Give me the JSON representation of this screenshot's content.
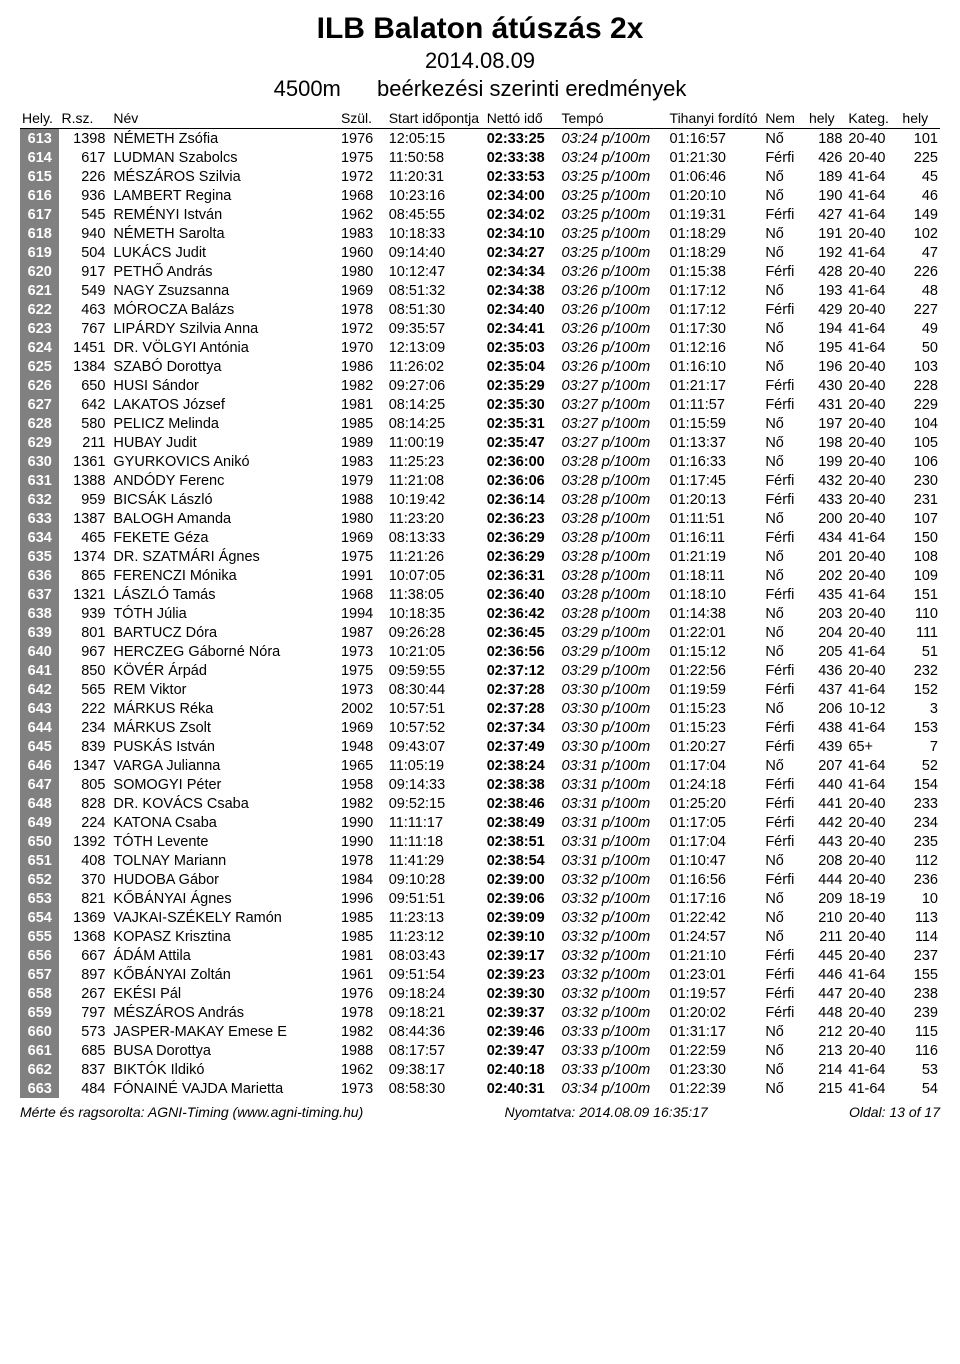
{
  "header": {
    "title": "ILB Balaton átúszás 2x",
    "date": "2014.08.09",
    "distance": "4500m",
    "subtitle": "beérkezési szerinti eredmények"
  },
  "columns": {
    "hely": "Hely.",
    "rsz": "R.sz.",
    "nev": "Név",
    "szul": "Szül.",
    "start": "Start időpontja",
    "netto": "Nettó idő",
    "tempo": "Tempó",
    "tihanyi": "Tihanyi fordító",
    "nem": "Nem",
    "nemhely": "hely",
    "kateg": "Kateg.",
    "kateghely": "hely"
  },
  "footer": {
    "left": "Mérte és ragsorolta: AGNI-Timing  (www.agni-timing.hu)",
    "mid": "Nyomtatva:  2014.08.09 16:35:17",
    "right": "Oldal:   13 of 17"
  },
  "rows": [
    {
      "hely": "613",
      "rsz": "1398",
      "nev": "NÉMETH Zsófia",
      "szul": "1976",
      "start": "12:05:15",
      "netto": "02:33:25",
      "tempo": "03:24 p/100m",
      "tih": "01:16:57",
      "nem": "Nő",
      "nemhely": "188",
      "kateg": "20-40",
      "kateghely": "101"
    },
    {
      "hely": "614",
      "rsz": "617",
      "nev": "LUDMAN Szabolcs",
      "szul": "1975",
      "start": "11:50:58",
      "netto": "02:33:38",
      "tempo": "03:24 p/100m",
      "tih": "01:21:30",
      "nem": "Férfi",
      "nemhely": "426",
      "kateg": "20-40",
      "kateghely": "225"
    },
    {
      "hely": "615",
      "rsz": "226",
      "nev": "MÉSZÁROS Szilvia",
      "szul": "1972",
      "start": "11:20:31",
      "netto": "02:33:53",
      "tempo": "03:25 p/100m",
      "tih": "01:06:46",
      "nem": "Nő",
      "nemhely": "189",
      "kateg": "41-64",
      "kateghely": "45"
    },
    {
      "hely": "616",
      "rsz": "936",
      "nev": "LAMBERT Regina",
      "szul": "1968",
      "start": "10:23:16",
      "netto": "02:34:00",
      "tempo": "03:25 p/100m",
      "tih": "01:20:10",
      "nem": "Nő",
      "nemhely": "190",
      "kateg": "41-64",
      "kateghely": "46"
    },
    {
      "hely": "617",
      "rsz": "545",
      "nev": "REMÉNYI István",
      "szul": "1962",
      "start": "08:45:55",
      "netto": "02:34:02",
      "tempo": "03:25 p/100m",
      "tih": "01:19:31",
      "nem": "Férfi",
      "nemhely": "427",
      "kateg": "41-64",
      "kateghely": "149"
    },
    {
      "hely": "618",
      "rsz": "940",
      "nev": "NÉMETH Sarolta",
      "szul": "1983",
      "start": "10:18:33",
      "netto": "02:34:10",
      "tempo": "03:25 p/100m",
      "tih": "01:18:29",
      "nem": "Nő",
      "nemhely": "191",
      "kateg": "20-40",
      "kateghely": "102"
    },
    {
      "hely": "619",
      "rsz": "504",
      "nev": "LUKÁCS Judit",
      "szul": "1960",
      "start": "09:14:40",
      "netto": "02:34:27",
      "tempo": "03:25 p/100m",
      "tih": "01:18:29",
      "nem": "Nő",
      "nemhely": "192",
      "kateg": "41-64",
      "kateghely": "47"
    },
    {
      "hely": "620",
      "rsz": "917",
      "nev": "PETHŐ András",
      "szul": "1980",
      "start": "10:12:47",
      "netto": "02:34:34",
      "tempo": "03:26 p/100m",
      "tih": "01:15:38",
      "nem": "Férfi",
      "nemhely": "428",
      "kateg": "20-40",
      "kateghely": "226"
    },
    {
      "hely": "621",
      "rsz": "549",
      "nev": "NAGY Zsuzsanna",
      "szul": "1969",
      "start": "08:51:32",
      "netto": "02:34:38",
      "tempo": "03:26 p/100m",
      "tih": "01:17:12",
      "nem": "Nő",
      "nemhely": "193",
      "kateg": "41-64",
      "kateghely": "48"
    },
    {
      "hely": "622",
      "rsz": "463",
      "nev": "MÓROCZA Balázs",
      "szul": "1978",
      "start": "08:51:30",
      "netto": "02:34:40",
      "tempo": "03:26 p/100m",
      "tih": "01:17:12",
      "nem": "Férfi",
      "nemhely": "429",
      "kateg": "20-40",
      "kateghely": "227"
    },
    {
      "hely": "623",
      "rsz": "767",
      "nev": "LIPÁRDY Szilvia Anna",
      "szul": "1972",
      "start": "09:35:57",
      "netto": "02:34:41",
      "tempo": "03:26 p/100m",
      "tih": "01:17:30",
      "nem": "Nő",
      "nemhely": "194",
      "kateg": "41-64",
      "kateghely": "49"
    },
    {
      "hely": "624",
      "rsz": "1451",
      "nev": "DR. VÖLGYI Antónia",
      "szul": "1970",
      "start": "12:13:09",
      "netto": "02:35:03",
      "tempo": "03:26 p/100m",
      "tih": "01:12:16",
      "nem": "Nő",
      "nemhely": "195",
      "kateg": "41-64",
      "kateghely": "50"
    },
    {
      "hely": "625",
      "rsz": "1384",
      "nev": "SZABÓ Dorottya",
      "szul": "1986",
      "start": "11:26:02",
      "netto": "02:35:04",
      "tempo": "03:26 p/100m",
      "tih": "01:16:10",
      "nem": "Nő",
      "nemhely": "196",
      "kateg": "20-40",
      "kateghely": "103"
    },
    {
      "hely": "626",
      "rsz": "650",
      "nev": "HUSI Sándor",
      "szul": "1982",
      "start": "09:27:06",
      "netto": "02:35:29",
      "tempo": "03:27 p/100m",
      "tih": "01:21:17",
      "nem": "Férfi",
      "nemhely": "430",
      "kateg": "20-40",
      "kateghely": "228"
    },
    {
      "hely": "627",
      "rsz": "642",
      "nev": "LAKATOS József",
      "szul": "1981",
      "start": "08:14:25",
      "netto": "02:35:30",
      "tempo": "03:27 p/100m",
      "tih": "01:11:57",
      "nem": "Férfi",
      "nemhely": "431",
      "kateg": "20-40",
      "kateghely": "229"
    },
    {
      "hely": "628",
      "rsz": "580",
      "nev": "PELICZ Melinda",
      "szul": "1985",
      "start": "08:14:25",
      "netto": "02:35:31",
      "tempo": "03:27 p/100m",
      "tih": "01:15:59",
      "nem": "Nő",
      "nemhely": "197",
      "kateg": "20-40",
      "kateghely": "104"
    },
    {
      "hely": "629",
      "rsz": "211",
      "nev": "HUBAY Judit",
      "szul": "1989",
      "start": "11:00:19",
      "netto": "02:35:47",
      "tempo": "03:27 p/100m",
      "tih": "01:13:37",
      "nem": "Nő",
      "nemhely": "198",
      "kateg": "20-40",
      "kateghely": "105"
    },
    {
      "hely": "630",
      "rsz": "1361",
      "nev": "GYURKOVICS Anikó",
      "szul": "1983",
      "start": "11:25:23",
      "netto": "02:36:00",
      "tempo": "03:28 p/100m",
      "tih": "01:16:33",
      "nem": "Nő",
      "nemhely": "199",
      "kateg": "20-40",
      "kateghely": "106"
    },
    {
      "hely": "631",
      "rsz": "1388",
      "nev": "ANDÓDY Ferenc",
      "szul": "1979",
      "start": "11:21:08",
      "netto": "02:36:06",
      "tempo": "03:28 p/100m",
      "tih": "01:17:45",
      "nem": "Férfi",
      "nemhely": "432",
      "kateg": "20-40",
      "kateghely": "230"
    },
    {
      "hely": "632",
      "rsz": "959",
      "nev": "BICSÁK László",
      "szul": "1988",
      "start": "10:19:42",
      "netto": "02:36:14",
      "tempo": "03:28 p/100m",
      "tih": "01:20:13",
      "nem": "Férfi",
      "nemhely": "433",
      "kateg": "20-40",
      "kateghely": "231"
    },
    {
      "hely": "633",
      "rsz": "1387",
      "nev": "BALOGH Amanda",
      "szul": "1980",
      "start": "11:23:20",
      "netto": "02:36:23",
      "tempo": "03:28 p/100m",
      "tih": "01:11:51",
      "nem": "Nő",
      "nemhely": "200",
      "kateg": "20-40",
      "kateghely": "107"
    },
    {
      "hely": "634",
      "rsz": "465",
      "nev": "FEKETE Géza",
      "szul": "1969",
      "start": "08:13:33",
      "netto": "02:36:29",
      "tempo": "03:28 p/100m",
      "tih": "01:16:11",
      "nem": "Férfi",
      "nemhely": "434",
      "kateg": "41-64",
      "kateghely": "150"
    },
    {
      "hely": "635",
      "rsz": "1374",
      "nev": "DR. SZATMÁRI Ágnes",
      "szul": "1975",
      "start": "11:21:26",
      "netto": "02:36:29",
      "tempo": "03:28 p/100m",
      "tih": "01:21:19",
      "nem": "Nő",
      "nemhely": "201",
      "kateg": "20-40",
      "kateghely": "108"
    },
    {
      "hely": "636",
      "rsz": "865",
      "nev": "FERENCZI Mónika",
      "szul": "1991",
      "start": "10:07:05",
      "netto": "02:36:31",
      "tempo": "03:28 p/100m",
      "tih": "01:18:11",
      "nem": "Nő",
      "nemhely": "202",
      "kateg": "20-40",
      "kateghely": "109"
    },
    {
      "hely": "637",
      "rsz": "1321",
      "nev": "LÁSZLÓ Tamás",
      "szul": "1968",
      "start": "11:38:05",
      "netto": "02:36:40",
      "tempo": "03:28 p/100m",
      "tih": "01:18:10",
      "nem": "Férfi",
      "nemhely": "435",
      "kateg": "41-64",
      "kateghely": "151"
    },
    {
      "hely": "638",
      "rsz": "939",
      "nev": "TÓTH Júlia",
      "szul": "1994",
      "start": "10:18:35",
      "netto": "02:36:42",
      "tempo": "03:28 p/100m",
      "tih": "01:14:38",
      "nem": "Nő",
      "nemhely": "203",
      "kateg": "20-40",
      "kateghely": "110"
    },
    {
      "hely": "639",
      "rsz": "801",
      "nev": "BARTUCZ Dóra",
      "szul": "1987",
      "start": "09:26:28",
      "netto": "02:36:45",
      "tempo": "03:29 p/100m",
      "tih": "01:22:01",
      "nem": "Nő",
      "nemhely": "204",
      "kateg": "20-40",
      "kateghely": "111"
    },
    {
      "hely": "640",
      "rsz": "967",
      "nev": "HERCZEG Gáborné Nóra",
      "szul": "1973",
      "start": "10:21:05",
      "netto": "02:36:56",
      "tempo": "03:29 p/100m",
      "tih": "01:15:12",
      "nem": "Nő",
      "nemhely": "205",
      "kateg": "41-64",
      "kateghely": "51"
    },
    {
      "hely": "641",
      "rsz": "850",
      "nev": "KÖVÉR Árpád",
      "szul": "1975",
      "start": "09:59:55",
      "netto": "02:37:12",
      "tempo": "03:29 p/100m",
      "tih": "01:22:56",
      "nem": "Férfi",
      "nemhely": "436",
      "kateg": "20-40",
      "kateghely": "232"
    },
    {
      "hely": "642",
      "rsz": "565",
      "nev": "REM Viktor",
      "szul": "1973",
      "start": "08:30:44",
      "netto": "02:37:28",
      "tempo": "03:30 p/100m",
      "tih": "01:19:59",
      "nem": "Férfi",
      "nemhely": "437",
      "kateg": "41-64",
      "kateghely": "152"
    },
    {
      "hely": "643",
      "rsz": "222",
      "nev": "MÁRKUS Réka",
      "szul": "2002",
      "start": "10:57:51",
      "netto": "02:37:28",
      "tempo": "03:30 p/100m",
      "tih": "01:15:23",
      "nem": "Nő",
      "nemhely": "206",
      "kateg": "10-12",
      "kateghely": "3"
    },
    {
      "hely": "644",
      "rsz": "234",
      "nev": "MÁRKUS Zsolt",
      "szul": "1969",
      "start": "10:57:52",
      "netto": "02:37:34",
      "tempo": "03:30 p/100m",
      "tih": "01:15:23",
      "nem": "Férfi",
      "nemhely": "438",
      "kateg": "41-64",
      "kateghely": "153"
    },
    {
      "hely": "645",
      "rsz": "839",
      "nev": "PUSKÁS István",
      "szul": "1948",
      "start": "09:43:07",
      "netto": "02:37:49",
      "tempo": "03:30 p/100m",
      "tih": "01:20:27",
      "nem": "Férfi",
      "nemhely": "439",
      "kateg": "65+",
      "kateghely": "7"
    },
    {
      "hely": "646",
      "rsz": "1347",
      "nev": "VARGA Julianna",
      "szul": "1965",
      "start": "11:05:19",
      "netto": "02:38:24",
      "tempo": "03:31 p/100m",
      "tih": "01:17:04",
      "nem": "Nő",
      "nemhely": "207",
      "kateg": "41-64",
      "kateghely": "52"
    },
    {
      "hely": "647",
      "rsz": "805",
      "nev": "SOMOGYI Péter",
      "szul": "1958",
      "start": "09:14:33",
      "netto": "02:38:38",
      "tempo": "03:31 p/100m",
      "tih": "01:24:18",
      "nem": "Férfi",
      "nemhely": "440",
      "kateg": "41-64",
      "kateghely": "154"
    },
    {
      "hely": "648",
      "rsz": "828",
      "nev": "DR. KOVÁCS Csaba",
      "szul": "1982",
      "start": "09:52:15",
      "netto": "02:38:46",
      "tempo": "03:31 p/100m",
      "tih": "01:25:20",
      "nem": "Férfi",
      "nemhely": "441",
      "kateg": "20-40",
      "kateghely": "233"
    },
    {
      "hely": "649",
      "rsz": "224",
      "nev": "KATONA Csaba",
      "szul": "1990",
      "start": "11:11:17",
      "netto": "02:38:49",
      "tempo": "03:31 p/100m",
      "tih": "01:17:05",
      "nem": "Férfi",
      "nemhely": "442",
      "kateg": "20-40",
      "kateghely": "234"
    },
    {
      "hely": "650",
      "rsz": "1392",
      "nev": "TÓTH Levente",
      "szul": "1990",
      "start": "11:11:18",
      "netto": "02:38:51",
      "tempo": "03:31 p/100m",
      "tih": "01:17:04",
      "nem": "Férfi",
      "nemhely": "443",
      "kateg": "20-40",
      "kateghely": "235"
    },
    {
      "hely": "651",
      "rsz": "408",
      "nev": "TOLNAY Mariann",
      "szul": "1978",
      "start": "11:41:29",
      "netto": "02:38:54",
      "tempo": "03:31 p/100m",
      "tih": "01:10:47",
      "nem": "Nő",
      "nemhely": "208",
      "kateg": "20-40",
      "kateghely": "112"
    },
    {
      "hely": "652",
      "rsz": "370",
      "nev": "HUDOBA Gábor",
      "szul": "1984",
      "start": "09:10:28",
      "netto": "02:39:00",
      "tempo": "03:32 p/100m",
      "tih": "01:16:56",
      "nem": "Férfi",
      "nemhely": "444",
      "kateg": "20-40",
      "kateghely": "236"
    },
    {
      "hely": "653",
      "rsz": "821",
      "nev": "KŐBÁNYAI Ágnes",
      "szul": "1996",
      "start": "09:51:51",
      "netto": "02:39:06",
      "tempo": "03:32 p/100m",
      "tih": "01:17:16",
      "nem": "Nő",
      "nemhely": "209",
      "kateg": "18-19",
      "kateghely": "10"
    },
    {
      "hely": "654",
      "rsz": "1369",
      "nev": "VAJKAI-SZÉKELY Ramón",
      "szul": "1985",
      "start": "11:23:13",
      "netto": "02:39:09",
      "tempo": "03:32 p/100m",
      "tih": "01:22:42",
      "nem": "Nő",
      "nemhely": "210",
      "kateg": "20-40",
      "kateghely": "113"
    },
    {
      "hely": "655",
      "rsz": "1368",
      "nev": "KOPASZ Krisztina",
      "szul": "1985",
      "start": "11:23:12",
      "netto": "02:39:10",
      "tempo": "03:32 p/100m",
      "tih": "01:24:57",
      "nem": "Nő",
      "nemhely": "211",
      "kateg": "20-40",
      "kateghely": "114"
    },
    {
      "hely": "656",
      "rsz": "667",
      "nev": "ÁDÁM Attila",
      "szul": "1981",
      "start": "08:03:43",
      "netto": "02:39:17",
      "tempo": "03:32 p/100m",
      "tih": "01:21:10",
      "nem": "Férfi",
      "nemhely": "445",
      "kateg": "20-40",
      "kateghely": "237"
    },
    {
      "hely": "657",
      "rsz": "897",
      "nev": "KŐBÁNYAI Zoltán",
      "szul": "1961",
      "start": "09:51:54",
      "netto": "02:39:23",
      "tempo": "03:32 p/100m",
      "tih": "01:23:01",
      "nem": "Férfi",
      "nemhely": "446",
      "kateg": "41-64",
      "kateghely": "155"
    },
    {
      "hely": "658",
      "rsz": "267",
      "nev": "EKÉSI Pál",
      "szul": "1976",
      "start": "09:18:24",
      "netto": "02:39:30",
      "tempo": "03:32 p/100m",
      "tih": "01:19:57",
      "nem": "Férfi",
      "nemhely": "447",
      "kateg": "20-40",
      "kateghely": "238"
    },
    {
      "hely": "659",
      "rsz": "797",
      "nev": "MÉSZÁROS András",
      "szul": "1978",
      "start": "09:18:21",
      "netto": "02:39:37",
      "tempo": "03:32 p/100m",
      "tih": "01:20:02",
      "nem": "Férfi",
      "nemhely": "448",
      "kateg": "20-40",
      "kateghely": "239"
    },
    {
      "hely": "660",
      "rsz": "573",
      "nev": "JASPER-MAKAY Emese E",
      "szul": "1982",
      "start": "08:44:36",
      "netto": "02:39:46",
      "tempo": "03:33 p/100m",
      "tih": "01:31:17",
      "nem": "Nő",
      "nemhely": "212",
      "kateg": "20-40",
      "kateghely": "115"
    },
    {
      "hely": "661",
      "rsz": "685",
      "nev": "BUSA Dorottya",
      "szul": "1988",
      "start": "08:17:57",
      "netto": "02:39:47",
      "tempo": "03:33 p/100m",
      "tih": "01:22:59",
      "nem": "Nő",
      "nemhely": "213",
      "kateg": "20-40",
      "kateghely": "116"
    },
    {
      "hely": "662",
      "rsz": "837",
      "nev": "BIKTÓK Ildikó",
      "szul": "1962",
      "start": "09:38:17",
      "netto": "02:40:18",
      "tempo": "03:33 p/100m",
      "tih": "01:23:30",
      "nem": "Nő",
      "nemhely": "214",
      "kateg": "41-64",
      "kateghely": "53"
    },
    {
      "hely": "663",
      "rsz": "484",
      "nev": "FÓNAINÉ VAJDA Marietta",
      "szul": "1973",
      "start": "08:58:30",
      "netto": "02:40:31",
      "tempo": "03:34 p/100m",
      "tih": "01:22:39",
      "nem": "Nő",
      "nemhely": "215",
      "kateg": "41-64",
      "kateghely": "54"
    }
  ]
}
